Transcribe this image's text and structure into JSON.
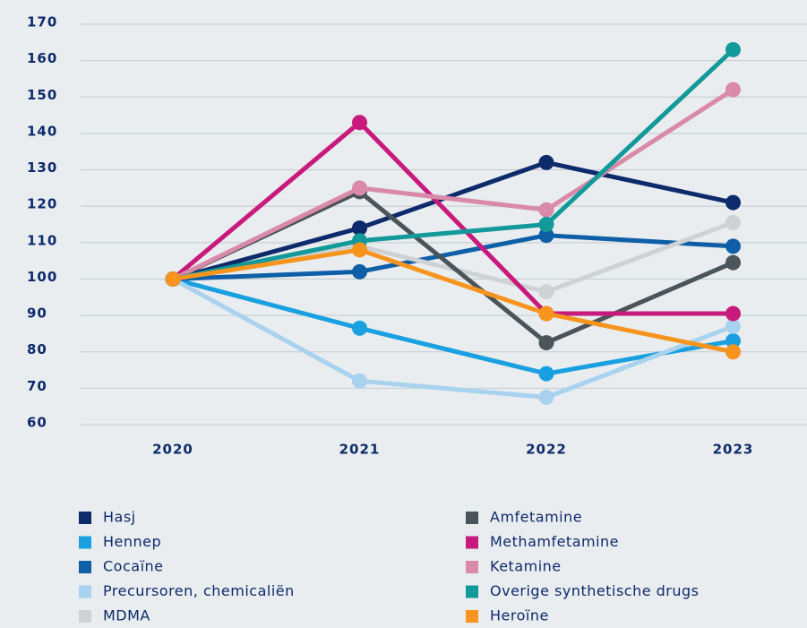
{
  "chart_data": {
    "type": "line",
    "categories": [
      "2020",
      "2021",
      "2022",
      "2023"
    ],
    "ylim": [
      60,
      170
    ],
    "yticks": [
      60,
      70,
      80,
      90,
      100,
      110,
      120,
      130,
      140,
      150,
      160,
      170
    ],
    "grid": true,
    "series": [
      {
        "name": "Hasj",
        "color": "#0d2a6b",
        "values": [
          100,
          114,
          132,
          121
        ]
      },
      {
        "name": "Hennep",
        "color": "#1aa0e0",
        "values": [
          100,
          86.5,
          74,
          83
        ]
      },
      {
        "name": "Cocaïne",
        "color": "#0f5fa8",
        "values": [
          100,
          102,
          112,
          109
        ]
      },
      {
        "name": "Precursoren, chemicaliën",
        "color": "#a8d2ee",
        "values": [
          100,
          72,
          67.5,
          87
        ]
      },
      {
        "name": "MDMA",
        "color": "#cfd2d4",
        "values": [
          100,
          109,
          96.5,
          115.5
        ]
      },
      {
        "name": "Amfetamine",
        "color": "#4a5459",
        "values": [
          100,
          124,
          82.5,
          104.5
        ]
      },
      {
        "name": "Methamfetamine",
        "color": "#c81a7c",
        "values": [
          100,
          143,
          90.5,
          90.5
        ]
      },
      {
        "name": "Ketamine",
        "color": "#d98aa8",
        "values": [
          100,
          125,
          119,
          152
        ]
      },
      {
        "name": "Overige synthetische drugs",
        "color": "#12999a",
        "values": [
          100,
          110.5,
          115,
          163
        ]
      },
      {
        "name": "Heroïne",
        "color": "#f7941d",
        "values": [
          100,
          108,
          90.5,
          80
        ]
      }
    ]
  }
}
